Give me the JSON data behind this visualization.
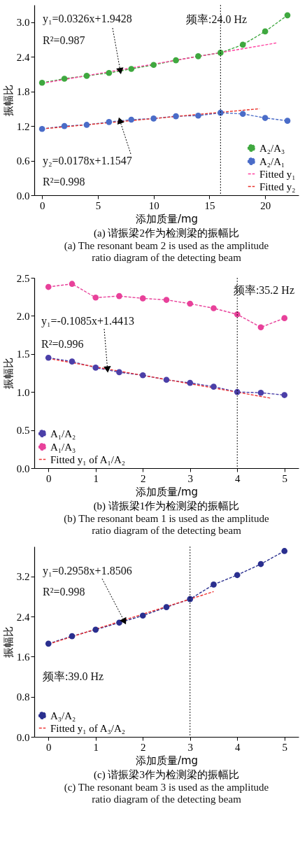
{
  "chart_data": [
    {
      "type": "line",
      "title": "(a) 谐振梁2作为检测梁的振幅比",
      "subtitle": "(a) The resonant beam 2 is used as the amplitude ratio diagram of the detecting beam",
      "xlabel": "添加质量/mg",
      "ylabel": "振幅比",
      "xlim": [
        -0.7,
        23
      ],
      "xticks": [
        0,
        5,
        10,
        15,
        20
      ],
      "ylim": [
        0,
        3.3
      ],
      "yticks": [
        {
          "value": 0,
          "label": "0.0"
        },
        0.6,
        1.2,
        1.8,
        2.4,
        {
          "value": 3,
          "label": "3.0"
        }
      ],
      "grid": false,
      "legend": "bottom right",
      "marker": "circle",
      "line_style": "dashed",
      "x": [
        0,
        2,
        4,
        6,
        8,
        10,
        12,
        14,
        16,
        18,
        20,
        22
      ],
      "series": [
        {
          "name": "A₂/A₃",
          "color": "#3fa83f",
          "values": [
            1.95,
            2.02,
            2.07,
            2.12,
            2.19,
            2.26,
            2.34,
            2.41,
            2.47,
            2.61,
            2.84,
            3.12
          ]
        },
        {
          "name": "A₂/A₁",
          "color": "#4a6cc8",
          "values": [
            1.15,
            1.2,
            1.22,
            1.27,
            1.31,
            1.33,
            1.37,
            1.38,
            1.43,
            1.41,
            1.34,
            1.29
          ]
        },
        {
          "name": "Fitted y₁",
          "color": "#ff3f9f",
          "marker": "none",
          "x": [
            0,
            21
          ],
          "values": [
            1.94,
            2.64
          ]
        },
        {
          "name": "Fitted y₂",
          "color": "#e8302a",
          "marker": "none",
          "x": [
            0,
            19.5
          ],
          "values": [
            1.15,
            1.5
          ]
        }
      ],
      "ref_lines": [
        {
          "axis": "x",
          "value": 16,
          "color": "#000000",
          "line_style": "dotted"
        }
      ],
      "annotations": [
        {
          "text": "y₁=0.0326x+1.9428",
          "x": 7,
          "y": 2.17
        },
        "R²=0.987",
        {
          "text": "y₂=0.0178x+1.1547",
          "x": 7,
          "y": 1.28
        },
        "R²=0.998",
        "频率:24.0 Hz"
      ]
    },
    {
      "type": "line",
      "title": "(b) 谐振梁1作为检测梁的振幅比",
      "subtitle": "(b) The resonant beam 1 is used as the amplitude ratio diagram of the detecting beam",
      "xlabel": "添加质量/mg",
      "ylabel": "振幅比",
      "xlim": [
        -0.3,
        5.3
      ],
      "xticks": [
        0,
        1,
        2,
        3,
        4,
        5
      ],
      "ylim": [
        0,
        2.5
      ],
      "yticks": [
        {
          "value": 0,
          "label": "0.0"
        },
        0.5,
        {
          "value": 1,
          "label": "1.0"
        },
        1.5,
        {
          "value": 2,
          "label": "2.0"
        },
        2.5
      ],
      "grid": false,
      "legend": "bottom left",
      "marker": "circle",
      "line_style": "dashed",
      "x": [
        0,
        0.5,
        1,
        1.5,
        2,
        2.5,
        3,
        3.5,
        4,
        4.5,
        5
      ],
      "series": [
        {
          "name": "A₁/A₂",
          "color": "#4b3fa8",
          "values": [
            1.45,
            1.4,
            1.32,
            1.26,
            1.22,
            1.16,
            1.12,
            1.07,
            1.0,
            0.99,
            0.96
          ]
        },
        {
          "name": "A₁/A₃",
          "color": "#e8419a",
          "values": [
            2.38,
            2.42,
            2.24,
            2.26,
            2.23,
            2.21,
            2.16,
            2.1,
            2.02,
            1.85,
            1.97
          ]
        },
        {
          "name": "Fitted y₁ of A₁/A₂",
          "color": "#ee3333",
          "marker": "none",
          "x": [
            0,
            4.7
          ],
          "values": [
            1.44,
            0.92
          ]
        }
      ],
      "ref_lines": [
        {
          "axis": "x",
          "value": 4,
          "color": "#000000",
          "line_style": "dotted"
        }
      ],
      "annotations": [
        {
          "text": "y₁=-0.1085x+1.4413",
          "x": 1.25,
          "y": 1.31
        },
        "R²=0.996",
        "频率:35.2 Hz"
      ]
    },
    {
      "type": "line",
      "title": "(c) 谐振梁3作为检测梁的振幅比",
      "subtitle": "(c) The resonant beam 3 is used as the amplitude ratio diagram of the detecting beam",
      "xlabel": "添加质量/mg",
      "ylabel": "振幅比",
      "xlim": [
        -0.3,
        5.3
      ],
      "xticks": [
        0,
        1,
        2,
        3,
        4,
        5
      ],
      "ylim": [
        0,
        3.8
      ],
      "yticks": [
        {
          "value": 0,
          "label": "0.0"
        },
        0.8,
        1.6,
        2.4,
        3.2
      ],
      "grid": false,
      "legend": "bottom left",
      "marker": "circle",
      "line_style": "dashed",
      "x": [
        0,
        0.5,
        1,
        1.5,
        2,
        2.5,
        3,
        3.5,
        4,
        4.5,
        5
      ],
      "series": [
        {
          "name": "A₃/A₂",
          "color": "#2a2f8f",
          "values": [
            1.86,
            2.01,
            2.14,
            2.28,
            2.42,
            2.59,
            2.75,
            3.04,
            3.23,
            3.45,
            3.71
          ]
        },
        {
          "name": "Fitted y₁ of A₃/A₂",
          "color": "#ee3333",
          "marker": "none",
          "x": [
            0,
            3.5
          ],
          "values": [
            1.85,
            2.9
          ]
        }
      ],
      "ref_lines": [
        {
          "axis": "x",
          "value": 3,
          "color": "#000000",
          "line_style": "dotted"
        }
      ],
      "annotations": [
        {
          "text": "y₁=0.2958x+1.8506",
          "x": 1.6,
          "y": 2.32
        },
        "R²=0.998",
        "频率:39.0 Hz"
      ]
    }
  ]
}
